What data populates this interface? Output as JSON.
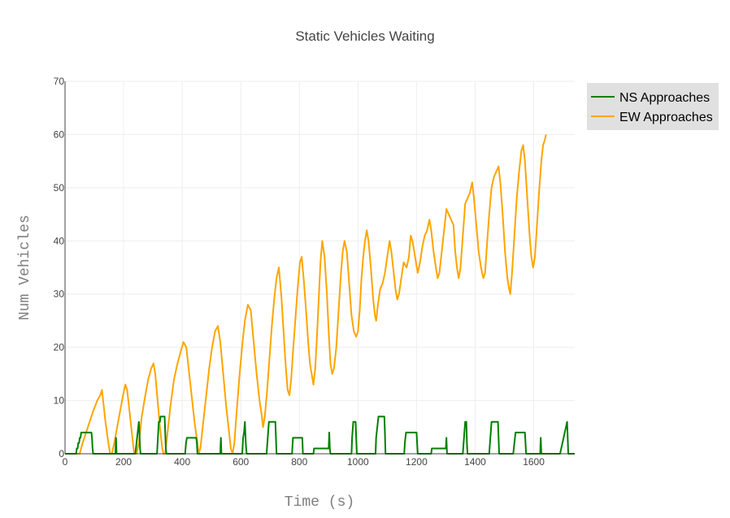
{
  "chart_data": {
    "type": "line",
    "title": "Static Vehicles Waiting",
    "xlabel": "Time (s)",
    "ylabel": "Num Vehicles",
    "xlim": [
      0,
      1740
    ],
    "ylim": [
      0,
      70
    ],
    "xticks": [
      0,
      200,
      400,
      600,
      800,
      1000,
      1200,
      1400,
      1600
    ],
    "yticks": [
      0,
      10,
      20,
      30,
      40,
      50,
      60,
      70
    ],
    "grid": true,
    "legend_position": "top-right",
    "series": [
      {
        "name": "NS Approaches",
        "color": "#008000",
        "points": [
          [
            0,
            0
          ],
          [
            38,
            0
          ],
          [
            40,
            1
          ],
          [
            43,
            1
          ],
          [
            45,
            2
          ],
          [
            48,
            2
          ],
          [
            50,
            3
          ],
          [
            53,
            3
          ],
          [
            55,
            4
          ],
          [
            90,
            4
          ],
          [
            92,
            3
          ],
          [
            94,
            1
          ],
          [
            96,
            0
          ],
          [
            172,
            0
          ],
          [
            174,
            3
          ],
          [
            176,
            0
          ],
          [
            240,
            0
          ],
          [
            242,
            1
          ],
          [
            244,
            2
          ],
          [
            246,
            3
          ],
          [
            248,
            4
          ],
          [
            250,
            5
          ],
          [
            252,
            6
          ],
          [
            254,
            4
          ],
          [
            256,
            1
          ],
          [
            258,
            0
          ],
          [
            314,
            0
          ],
          [
            316,
            2
          ],
          [
            318,
            4
          ],
          [
            320,
            6
          ],
          [
            324,
            6
          ],
          [
            326,
            7
          ],
          [
            340,
            7
          ],
          [
            342,
            4
          ],
          [
            344,
            1
          ],
          [
            346,
            0
          ],
          [
            410,
            0
          ],
          [
            413,
            2
          ],
          [
            416,
            3
          ],
          [
            448,
            3
          ],
          [
            450,
            2
          ],
          [
            452,
            0
          ],
          [
            530,
            0
          ],
          [
            532,
            3
          ],
          [
            534,
            0
          ],
          [
            605,
            0
          ],
          [
            608,
            3
          ],
          [
            611,
            4
          ],
          [
            614,
            6
          ],
          [
            617,
            2
          ],
          [
            620,
            0
          ],
          [
            688,
            0
          ],
          [
            692,
            3
          ],
          [
            696,
            6
          ],
          [
            718,
            6
          ],
          [
            720,
            3
          ],
          [
            722,
            0
          ],
          [
            775,
            0
          ],
          [
            778,
            3
          ],
          [
            810,
            3
          ],
          [
            812,
            0
          ],
          [
            848,
            0
          ],
          [
            850,
            1
          ],
          [
            900,
            1
          ],
          [
            902,
            4
          ],
          [
            904,
            1
          ],
          [
            906,
            0
          ],
          [
            978,
            0
          ],
          [
            980,
            3
          ],
          [
            984,
            6
          ],
          [
            992,
            6
          ],
          [
            994,
            3
          ],
          [
            996,
            0
          ],
          [
            1060,
            0
          ],
          [
            1062,
            3
          ],
          [
            1066,
            5
          ],
          [
            1070,
            7
          ],
          [
            1090,
            7
          ],
          [
            1092,
            4
          ],
          [
            1094,
            0
          ],
          [
            1158,
            0
          ],
          [
            1160,
            2
          ],
          [
            1164,
            4
          ],
          [
            1200,
            4
          ],
          [
            1202,
            2
          ],
          [
            1204,
            0
          ],
          [
            1250,
            0
          ],
          [
            1252,
            1
          ],
          [
            1300,
            1
          ],
          [
            1302,
            3
          ],
          [
            1304,
            0
          ],
          [
            1358,
            0
          ],
          [
            1362,
            3
          ],
          [
            1366,
            6
          ],
          [
            1370,
            6
          ],
          [
            1372,
            2
          ],
          [
            1374,
            0
          ],
          [
            1448,
            0
          ],
          [
            1452,
            3
          ],
          [
            1456,
            6
          ],
          [
            1478,
            6
          ],
          [
            1480,
            3
          ],
          [
            1482,
            0
          ],
          [
            1530,
            0
          ],
          [
            1534,
            2
          ],
          [
            1538,
            4
          ],
          [
            1570,
            4
          ],
          [
            1572,
            2
          ],
          [
            1574,
            0
          ],
          [
            1622,
            0
          ],
          [
            1624,
            3
          ],
          [
            1626,
            0
          ],
          [
            1690,
            0
          ],
          [
            1694,
            1
          ],
          [
            1698,
            2
          ],
          [
            1702,
            3
          ],
          [
            1706,
            4
          ],
          [
            1710,
            5
          ],
          [
            1714,
            6
          ],
          [
            1716,
            3
          ],
          [
            1718,
            0
          ],
          [
            1740,
            0
          ]
        ]
      },
      {
        "name": "EW Approaches",
        "color": "#FFA500",
        "points": [
          [
            0,
            0
          ],
          [
            50,
            0
          ],
          [
            60,
            2
          ],
          [
            72,
            4
          ],
          [
            84,
            6
          ],
          [
            96,
            8
          ],
          [
            110,
            10
          ],
          [
            120,
            11
          ],
          [
            126,
            12
          ],
          [
            130,
            10
          ],
          [
            138,
            6
          ],
          [
            148,
            2
          ],
          [
            154,
            0
          ],
          [
            160,
            0
          ],
          [
            168,
            2
          ],
          [
            178,
            5
          ],
          [
            188,
            8
          ],
          [
            198,
            11
          ],
          [
            206,
            13
          ],
          [
            212,
            12
          ],
          [
            220,
            8
          ],
          [
            228,
            4
          ],
          [
            236,
            0
          ],
          [
            244,
            0
          ],
          [
            252,
            2
          ],
          [
            262,
            7
          ],
          [
            274,
            11
          ],
          [
            284,
            14
          ],
          [
            294,
            16
          ],
          [
            302,
            17
          ],
          [
            308,
            15
          ],
          [
            316,
            10
          ],
          [
            324,
            5
          ],
          [
            332,
            1
          ],
          [
            336,
            0
          ],
          [
            342,
            0
          ],
          [
            350,
            4
          ],
          [
            360,
            9
          ],
          [
            372,
            14
          ],
          [
            384,
            17
          ],
          [
            394,
            19
          ],
          [
            404,
            21
          ],
          [
            414,
            20
          ],
          [
            422,
            16
          ],
          [
            432,
            11
          ],
          [
            442,
            6
          ],
          [
            452,
            2
          ],
          [
            456,
            0
          ],
          [
            462,
            1
          ],
          [
            470,
            5
          ],
          [
            480,
            10
          ],
          [
            492,
            16
          ],
          [
            502,
            20
          ],
          [
            512,
            23
          ],
          [
            522,
            24
          ],
          [
            530,
            21
          ],
          [
            540,
            15
          ],
          [
            550,
            9
          ],
          [
            560,
            4
          ],
          [
            566,
            1
          ],
          [
            572,
            0
          ],
          [
            578,
            2
          ],
          [
            586,
            8
          ],
          [
            596,
            15
          ],
          [
            606,
            21
          ],
          [
            614,
            25
          ],
          [
            624,
            28
          ],
          [
            634,
            27
          ],
          [
            644,
            21
          ],
          [
            654,
            15
          ],
          [
            664,
            10
          ],
          [
            672,
            7
          ],
          [
            676,
            5
          ],
          [
            682,
            7
          ],
          [
            690,
            12
          ],
          [
            698,
            18
          ],
          [
            706,
            24
          ],
          [
            714,
            29
          ],
          [
            722,
            33
          ],
          [
            730,
            35
          ],
          [
            738,
            30
          ],
          [
            746,
            23
          ],
          [
            754,
            16
          ],
          [
            760,
            12
          ],
          [
            766,
            11
          ],
          [
            772,
            14
          ],
          [
            778,
            19
          ],
          [
            786,
            25
          ],
          [
            794,
            31
          ],
          [
            802,
            36
          ],
          [
            808,
            37
          ],
          [
            816,
            32
          ],
          [
            824,
            26
          ],
          [
            830,
            21
          ],
          [
            836,
            17
          ],
          [
            842,
            15
          ],
          [
            848,
            13
          ],
          [
            854,
            16
          ],
          [
            860,
            22
          ],
          [
            866,
            29
          ],
          [
            872,
            36
          ],
          [
            878,
            40
          ],
          [
            886,
            37
          ],
          [
            894,
            30
          ],
          [
            900,
            23
          ],
          [
            906,
            17
          ],
          [
            912,
            15
          ],
          [
            918,
            16
          ],
          [
            926,
            20
          ],
          [
            934,
            27
          ],
          [
            942,
            34
          ],
          [
            948,
            38
          ],
          [
            954,
            40
          ],
          [
            962,
            38
          ],
          [
            970,
            32
          ],
          [
            978,
            26
          ],
          [
            986,
            23
          ],
          [
            994,
            22
          ],
          [
            1000,
            23
          ],
          [
            1006,
            27
          ],
          [
            1012,
            33
          ],
          [
            1018,
            37
          ],
          [
            1024,
            40
          ],
          [
            1030,
            42
          ],
          [
            1036,
            40
          ],
          [
            1044,
            35
          ],
          [
            1052,
            29
          ],
          [
            1058,
            26
          ],
          [
            1062,
            25
          ],
          [
            1068,
            28
          ],
          [
            1076,
            31
          ],
          [
            1084,
            32
          ],
          [
            1092,
            34
          ],
          [
            1100,
            37
          ],
          [
            1108,
            40
          ],
          [
            1114,
            38
          ],
          [
            1122,
            34
          ],
          [
            1128,
            31
          ],
          [
            1134,
            29
          ],
          [
            1140,
            30
          ],
          [
            1148,
            33
          ],
          [
            1156,
            36
          ],
          [
            1166,
            35
          ],
          [
            1174,
            37
          ],
          [
            1180,
            41
          ],
          [
            1186,
            40
          ],
          [
            1192,
            38
          ],
          [
            1198,
            36
          ],
          [
            1204,
            34
          ],
          [
            1212,
            36
          ],
          [
            1220,
            39
          ],
          [
            1228,
            41
          ],
          [
            1236,
            42
          ],
          [
            1244,
            44
          ],
          [
            1250,
            42
          ],
          [
            1258,
            38
          ],
          [
            1266,
            35
          ],
          [
            1272,
            33
          ],
          [
            1278,
            34
          ],
          [
            1286,
            38
          ],
          [
            1294,
            42
          ],
          [
            1302,
            46
          ],
          [
            1310,
            45
          ],
          [
            1318,
            44
          ],
          [
            1326,
            43
          ],
          [
            1332,
            38
          ],
          [
            1338,
            35
          ],
          [
            1344,
            33
          ],
          [
            1350,
            35
          ],
          [
            1358,
            41
          ],
          [
            1366,
            47
          ],
          [
            1374,
            48
          ],
          [
            1382,
            49
          ],
          [
            1390,
            51
          ],
          [
            1396,
            48
          ],
          [
            1404,
            43
          ],
          [
            1412,
            38
          ],
          [
            1420,
            35
          ],
          [
            1428,
            33
          ],
          [
            1434,
            34
          ],
          [
            1440,
            39
          ],
          [
            1448,
            45
          ],
          [
            1456,
            50
          ],
          [
            1464,
            52
          ],
          [
            1472,
            53
          ],
          [
            1480,
            54
          ],
          [
            1486,
            51
          ],
          [
            1494,
            45
          ],
          [
            1502,
            38
          ],
          [
            1510,
            33
          ],
          [
            1516,
            31
          ],
          [
            1520,
            30
          ],
          [
            1526,
            34
          ],
          [
            1534,
            41
          ],
          [
            1542,
            48
          ],
          [
            1550,
            53
          ],
          [
            1558,
            57
          ],
          [
            1564,
            58
          ],
          [
            1570,
            55
          ],
          [
            1578,
            48
          ],
          [
            1586,
            41
          ],
          [
            1592,
            37
          ],
          [
            1598,
            35
          ],
          [
            1604,
            37
          ],
          [
            1610,
            42
          ],
          [
            1618,
            49
          ],
          [
            1626,
            55
          ],
          [
            1632,
            58
          ],
          [
            1638,
            59
          ],
          [
            1642,
            60
          ]
        ]
      }
    ]
  }
}
